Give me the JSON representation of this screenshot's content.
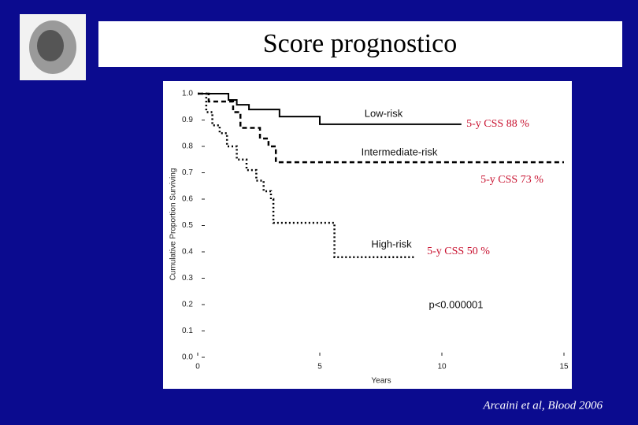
{
  "chart_data": {
    "type": "line",
    "title": "Score prognostico",
    "xlabel": "Years",
    "ylabel": "Cumulative Proportion Surviving",
    "xlim": [
      0,
      15
    ],
    "xticks": [
      0,
      5,
      10,
      15
    ],
    "ylim": [
      0,
      1
    ],
    "yticks": [
      {
        "value": 0,
        "label": "0.0"
      },
      0.1,
      0.2,
      0.3,
      0.4,
      0.5,
      0.6,
      0.7,
      0.8,
      0.9,
      {
        "value": 1,
        "label": "1.0"
      }
    ],
    "series": [
      {
        "name": "Low-risk",
        "color": "#000000",
        "dash": "solid",
        "x": [
          0,
          1.26,
          1.26,
          1.6,
          1.6,
          2.1,
          2.1,
          3.35,
          3.35,
          5.0,
          5.0,
          10.8
        ],
        "values": [
          1,
          1,
          0.976,
          0.976,
          0.958,
          0.958,
          0.94,
          0.94,
          0.913,
          0.913,
          0.884,
          0.884
        ]
      },
      {
        "name": "Intermediate-risk",
        "color": "#000000",
        "dash": "dashed",
        "x": [
          0,
          0.45,
          0.45,
          1.45,
          1.45,
          1.75,
          1.75,
          2.55,
          2.55,
          2.9,
          2.9,
          3.2,
          3.2,
          15
        ],
        "values": [
          1,
          1,
          0.97,
          0.97,
          0.93,
          0.93,
          0.87,
          0.87,
          0.83,
          0.83,
          0.8,
          0.8,
          0.74,
          0.74
        ]
      },
      {
        "name": "High-risk",
        "color": "#000000",
        "dash": "dotted",
        "x": [
          0,
          0.35,
          0.35,
          0.6,
          0.6,
          0.9,
          0.9,
          1.2,
          1.2,
          1.6,
          1.6,
          2.0,
          2.0,
          2.4,
          2.4,
          2.7,
          2.7,
          3.0,
          3.0,
          3.1,
          3.1,
          5.6,
          5.6,
          8.9
        ],
        "values": [
          1,
          1,
          0.93,
          0.93,
          0.88,
          0.88,
          0.85,
          0.85,
          0.8,
          0.8,
          0.75,
          0.75,
          0.71,
          0.71,
          0.67,
          0.67,
          0.63,
          0.63,
          0.6,
          0.6,
          0.51,
          0.51,
          0.38,
          0.38
        ]
      }
    ],
    "annotations": [
      "p<0.000001",
      "5-y CSS 88 %",
      "5-y CSS 73 %",
      "5-y CSS 50 %"
    ],
    "citation": "Arcaini et al, Blood  2006"
  }
}
